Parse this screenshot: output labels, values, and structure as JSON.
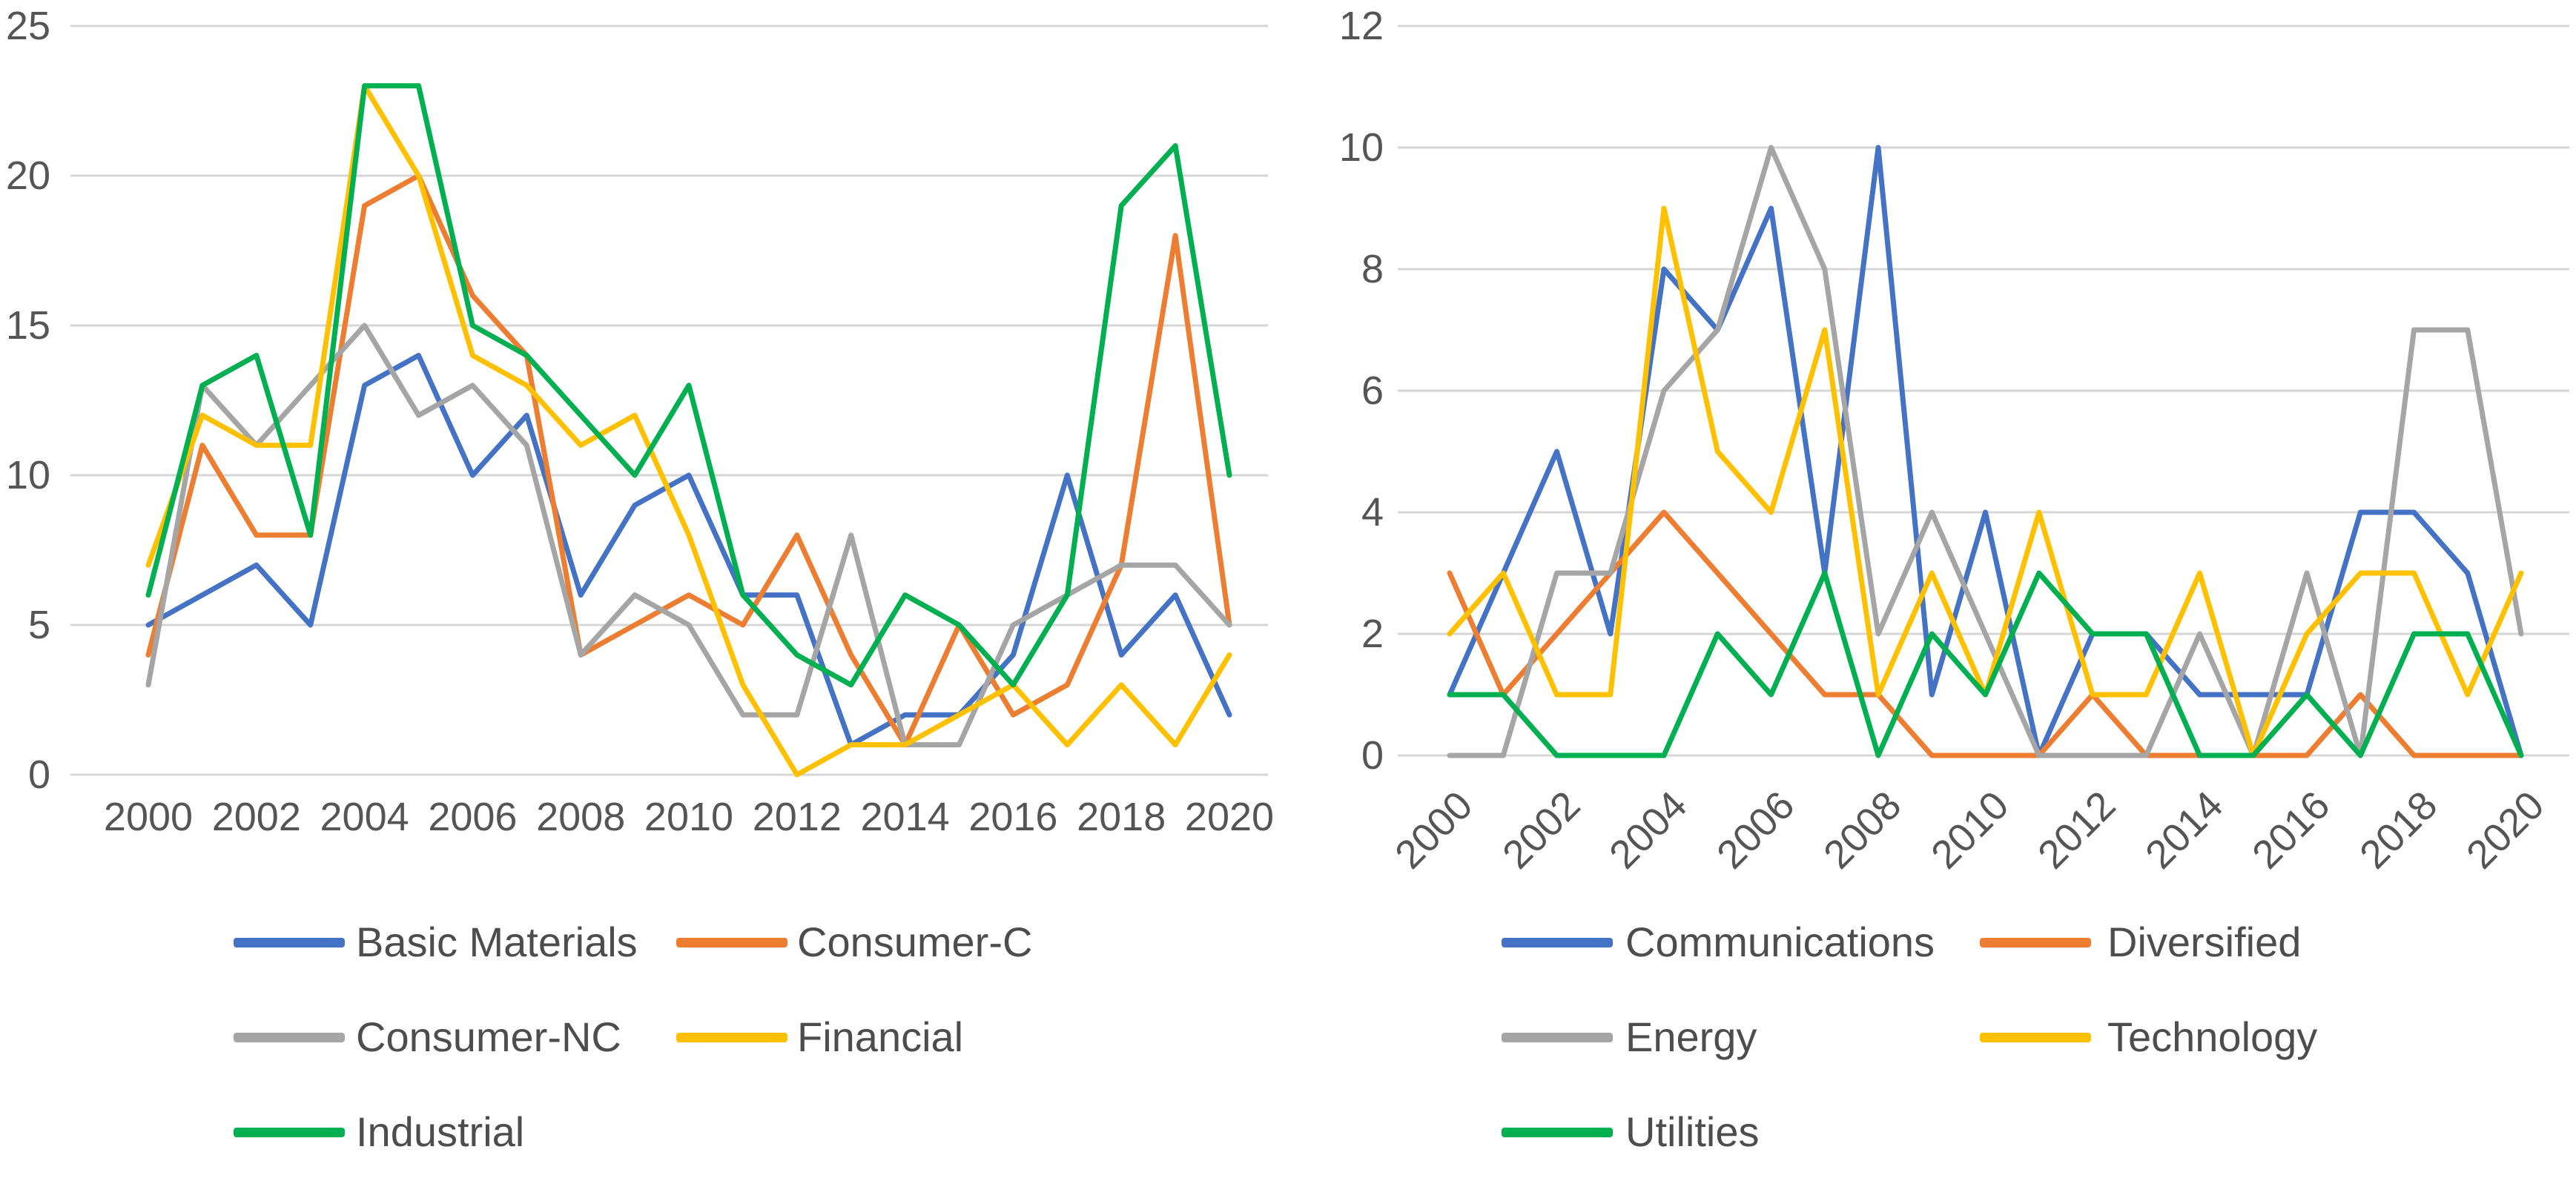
{
  "figure": {
    "background": "#ffffff",
    "tick_color": "#555555",
    "legend_text_color": "#4d4d4d",
    "gridline_color": "#d6d6d6"
  },
  "chart_data": [
    {
      "type": "line",
      "title": "",
      "xlabel": "",
      "ylabel": "",
      "ylim": [
        0,
        25
      ],
      "grid": "horizontal",
      "legend_position": "bottom",
      "categories": [
        2000,
        2001,
        2002,
        2003,
        2004,
        2005,
        2006,
        2007,
        2008,
        2009,
        2010,
        2011,
        2012,
        2013,
        2014,
        2015,
        2016,
        2017,
        2018,
        2019,
        2020
      ],
      "y_ticks": [
        "25",
        "20",
        "15",
        "10",
        "5",
        "0"
      ],
      "x_ticks": [
        "2000",
        "2002",
        "2004",
        "2006",
        "2008",
        "2010",
        "2012",
        "2014",
        "2016",
        "2018",
        "2020"
      ],
      "series": [
        {
          "name": "Basic Materials",
          "color": "#4472C4",
          "values": [
            5,
            6,
            7,
            5,
            13,
            14,
            10,
            12,
            6,
            9,
            10,
            6,
            6,
            1,
            2,
            2,
            4,
            10,
            4,
            6,
            2
          ]
        },
        {
          "name": "Consumer-C",
          "color": "#ED7D31",
          "values": [
            4,
            11,
            8,
            8,
            19,
            20,
            16,
            14,
            4,
            5,
            6,
            5,
            8,
            4,
            1,
            5,
            2,
            3,
            7,
            18,
            5
          ]
        },
        {
          "name": "Consumer-NC",
          "color": "#A5A5A5",
          "values": [
            3,
            13,
            11,
            13,
            15,
            12,
            13,
            11,
            4,
            6,
            5,
            2,
            2,
            8,
            1,
            1,
            5,
            6,
            7,
            7,
            5
          ]
        },
        {
          "name": "Financial",
          "color": "#FFC000",
          "values": [
            7,
            12,
            11,
            11,
            23,
            20,
            14,
            13,
            11,
            12,
            8,
            3,
            0,
            1,
            1,
            2,
            3,
            1,
            3,
            1,
            4
          ]
        },
        {
          "name": "Industrial",
          "color": "#00B050",
          "values": [
            6,
            13,
            14,
            8,
            23,
            23,
            15,
            14,
            12,
            10,
            13,
            6,
            4,
            3,
            6,
            5,
            3,
            6,
            19,
            21,
            10
          ]
        }
      ]
    },
    {
      "type": "line",
      "title": "",
      "xlabel": "",
      "ylabel": "",
      "ylim": [
        0,
        12
      ],
      "grid": "horizontal",
      "legend_position": "bottom",
      "categories": [
        2000,
        2001,
        2002,
        2003,
        2004,
        2005,
        2006,
        2007,
        2008,
        2009,
        2010,
        2011,
        2012,
        2013,
        2014,
        2015,
        2016,
        2017,
        2018,
        2019,
        2020
      ],
      "y_ticks": [
        "12",
        "10",
        "8",
        "6",
        "4",
        "2",
        "0"
      ],
      "x_ticks": [
        "2000",
        "2002",
        "2004",
        "2006",
        "2008",
        "2010",
        "2012",
        "2014",
        "2016",
        "2018",
        "2020"
      ],
      "series": [
        {
          "name": "Communications",
          "color": "#4472C4",
          "values": [
            1,
            3,
            5,
            2,
            8,
            7,
            9,
            3,
            10,
            1,
            4,
            0,
            2,
            2,
            1,
            1,
            1,
            4,
            4,
            3,
            0
          ]
        },
        {
          "name": "Diversified",
          "color": "#ED7D31",
          "values": [
            3,
            1,
            2,
            3,
            4,
            3,
            2,
            1,
            1,
            0,
            0,
            0,
            1,
            0,
            0,
            0,
            0,
            1,
            0,
            0,
            0
          ]
        },
        {
          "name": "Energy",
          "color": "#A5A5A5",
          "values": [
            0,
            0,
            3,
            3,
            6,
            7,
            10,
            8,
            2,
            4,
            2,
            0,
            0,
            0,
            2,
            0,
            3,
            0,
            7,
            7,
            2
          ]
        },
        {
          "name": "Technology",
          "color": "#FFC000",
          "values": [
            2,
            3,
            1,
            1,
            9,
            5,
            4,
            7,
            1,
            3,
            1,
            4,
            1,
            1,
            3,
            0,
            2,
            3,
            3,
            1,
            3
          ]
        },
        {
          "name": "Utilities",
          "color": "#00B050",
          "values": [
            1,
            1,
            0,
            0,
            0,
            2,
            1,
            3,
            0,
            2,
            1,
            3,
            2,
            2,
            0,
            0,
            1,
            0,
            2,
            2,
            0
          ]
        }
      ]
    }
  ]
}
